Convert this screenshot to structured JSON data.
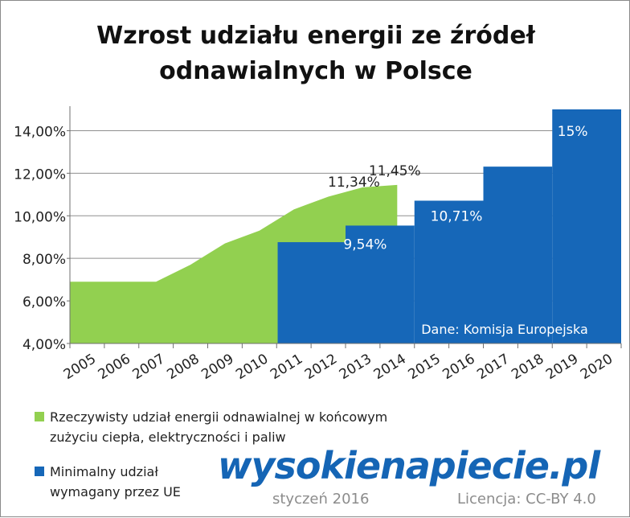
{
  "chart_data": {
    "type": "area",
    "title": "Wzrost udziału energii ze źródeł odnawialnych w Polsce",
    "title_lines": [
      "Wzrost udziału energii ze źródeł",
      "odnawialnych w Polsce"
    ],
    "categories": [
      "2005",
      "2006",
      "2007",
      "2008",
      "2009",
      "2010",
      "2011",
      "2012",
      "2013",
      "2014",
      "2015",
      "2016",
      "2017",
      "2018",
      "2019",
      "2020"
    ],
    "ylim": [
      0.04,
      0.15
    ],
    "yticks": [
      0.04,
      0.06,
      0.08,
      0.1,
      0.12,
      0.14
    ],
    "ytick_labels": [
      "4,00%",
      "6,00%",
      "8,00%",
      "10,00%",
      "12,00%",
      "14,00%"
    ],
    "grid": true,
    "series": [
      {
        "name": "Rzeczywisty udział energii odnawialnej w końcowym zużyciu ciepła, elektryczności i paliw",
        "style": "area",
        "color": "#92d050",
        "x": [
          "2005",
          "2006",
          "2007",
          "2008",
          "2009",
          "2010",
          "2011",
          "2012",
          "2013",
          "2014"
        ],
        "values": [
          0.069,
          0.069,
          0.069,
          0.077,
          0.087,
          0.093,
          0.103,
          0.109,
          0.1134,
          0.1145
        ]
      },
      {
        "name": "Minimalny udział wymagany przez UE",
        "style": "step",
        "color": "#1667b8",
        "x": [
          "2011",
          "2013",
          "2015",
          "2017",
          "2019"
        ],
        "values": [
          0.0876,
          0.0954,
          0.1071,
          0.1231,
          0.15
        ]
      }
    ],
    "annotations": [
      {
        "text": "11,45%",
        "x": "2014",
        "color": "#222222"
      },
      {
        "text": "11,34%",
        "x": "2013",
        "color": "#222222"
      },
      {
        "text": "9,54%",
        "x": "2013",
        "color": "#ffffff"
      },
      {
        "text": "10,71%",
        "x": "2015",
        "color": "#ffffff"
      },
      {
        "text": "15%",
        "x": "2019",
        "color": "#ffffff"
      },
      {
        "text": "Dane: Komisja Europejska",
        "color": "#ffffff"
      }
    ]
  },
  "legend": {
    "actual_label": "Rzeczywisty udział energii odnawialnej w końcowym zużyciu ciepła, elektryczności i paliw",
    "target_label": "Minimalny udział wymagany przez UE"
  },
  "footer": {
    "logo": "wysokienapiecie.pl",
    "date": "styczeń 2016",
    "license": "Licencja: CC-BY 4.0"
  }
}
